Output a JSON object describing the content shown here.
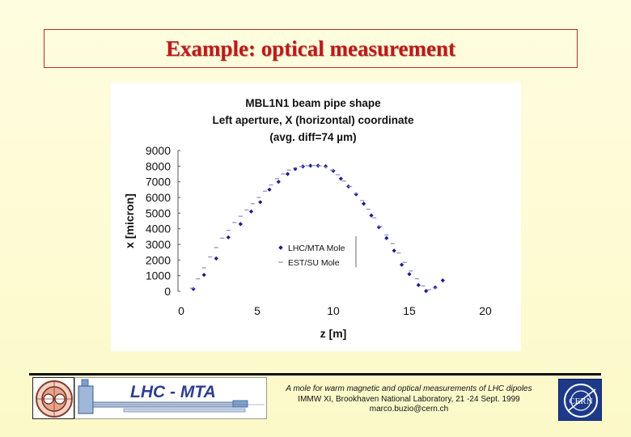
{
  "slide": {
    "title": "Example: optical measurement"
  },
  "chart_data": {
    "type": "scatter",
    "title_lines": [
      "MBL1N1 beam pipe shape",
      "Left aperture, X (horizontal) coordinate",
      "(avg. diff=74 µm)"
    ],
    "xlabel": "z [m]",
    "ylabel": "x [micron]",
    "xlim": [
      0,
      20
    ],
    "ylim": [
      0,
      9000
    ],
    "xticks": [
      0,
      5,
      10,
      15,
      20
    ],
    "yticks": [
      0,
      1000,
      2000,
      3000,
      4000,
      5000,
      6000,
      7000,
      8000,
      9000
    ],
    "grid": false,
    "legend_position": "center-right",
    "series": [
      {
        "name": "LHC/MTA Mole",
        "marker": "diamond",
        "color": "#1c1c8c",
        "x": [
          0.8,
          1.5,
          2.3,
          3.1,
          3.9,
          4.6,
          5.2,
          5.8,
          6.4,
          7.0,
          7.5,
          8.0,
          8.5,
          9.0,
          9.5,
          10.0,
          10.5,
          11.0,
          11.5,
          12.0,
          12.5,
          13.0,
          13.5,
          14.0,
          14.5,
          15.0,
          15.6,
          16.1,
          16.7,
          17.2
        ],
        "y": [
          150,
          1050,
          2100,
          3450,
          4300,
          5100,
          5700,
          6500,
          7000,
          7500,
          7820,
          7980,
          8030,
          8030,
          7990,
          7700,
          7200,
          6700,
          6200,
          5600,
          4850,
          4100,
          3400,
          2600,
          1700,
          1100,
          400,
          20,
          250,
          700
        ]
      },
      {
        "name": "EST/SU Mole",
        "marker": "dash",
        "color": "#8a8ad0",
        "x": [
          0.7,
          1.1,
          1.5,
          1.9,
          2.3,
          2.7,
          3.1,
          3.5,
          3.9,
          4.3,
          4.7,
          5.1,
          5.5,
          5.9,
          6.3,
          6.7,
          7.1,
          7.5,
          7.9,
          8.3,
          8.7,
          9.1,
          9.5,
          9.9,
          10.3,
          10.7,
          11.1,
          11.5,
          11.9,
          12.3,
          12.7,
          13.1,
          13.5,
          13.9,
          14.3,
          14.7,
          15.1,
          15.5,
          15.9,
          16.3,
          16.7
        ],
        "y": [
          200,
          800,
          1500,
          2200,
          2800,
          3400,
          3900,
          4400,
          4800,
          5200,
          5600,
          6000,
          6400,
          6800,
          7200,
          7500,
          7750,
          7900,
          7980,
          8020,
          8040,
          8020,
          7950,
          7750,
          7450,
          7050,
          6700,
          6250,
          5800,
          5250,
          4700,
          4150,
          3600,
          3050,
          2450,
          1850,
          1300,
          800,
          350,
          100,
          200
        ]
      }
    ]
  },
  "footer": {
    "banner_label": "LHC - MTA",
    "line1": "A mole for warm magnetic and optical measurements of LHC dipoles",
    "line2": "IMMW XI, Brookhaven National Laboratory, 21 -24 Sept. 1999",
    "line3": "marco.buzio@cern.ch",
    "right_logo_text": "CERN"
  }
}
